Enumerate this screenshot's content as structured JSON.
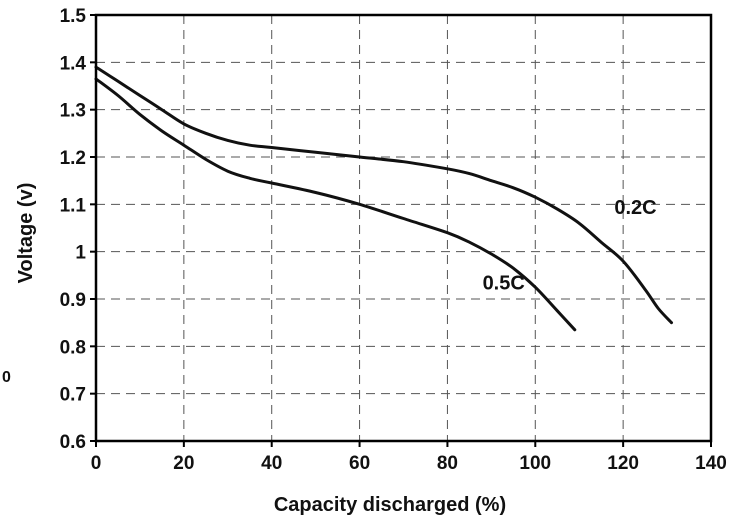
{
  "chart_data": {
    "type": "line",
    "title": "",
    "xlabel": "Capacity discharged (%)",
    "ylabel": "Voltage (v)",
    "xlim": [
      0,
      140
    ],
    "ylim": [
      0.6,
      1.5
    ],
    "xticks": [
      0,
      20,
      40,
      60,
      80,
      100,
      120,
      140
    ],
    "xtick_labels": [
      "0",
      "20",
      "40",
      "60",
      "80",
      "100",
      "120",
      "140"
    ],
    "yticks": [
      0.6,
      0.7,
      0.8,
      0.9,
      1.0,
      1.1,
      1.2,
      1.3,
      1.4,
      1.5
    ],
    "ytick_labels": [
      "0.6",
      "0.7",
      "0.8",
      "0.9",
      "1",
      "1.1",
      "1.2",
      "1.3",
      "1.4",
      "1.5"
    ],
    "grid": true,
    "legend": "none (series labeled directly on curves)",
    "series": [
      {
        "name": "0.2C",
        "x": [
          0,
          5,
          10,
          15,
          20,
          25,
          30,
          35,
          40,
          50,
          60,
          70,
          80,
          85,
          90,
          95,
          100,
          105,
          110,
          115,
          120,
          125,
          128,
          131
        ],
        "y": [
          1.39,
          1.36,
          1.33,
          1.3,
          1.27,
          1.25,
          1.235,
          1.225,
          1.22,
          1.21,
          1.2,
          1.19,
          1.175,
          1.165,
          1.15,
          1.135,
          1.115,
          1.09,
          1.06,
          1.02,
          0.98,
          0.92,
          0.88,
          0.85
        ]
      },
      {
        "name": "0.5C",
        "x": [
          0,
          5,
          10,
          15,
          20,
          25,
          30,
          35,
          40,
          50,
          60,
          70,
          80,
          85,
          90,
          95,
          100,
          105,
          109
        ],
        "y": [
          1.365,
          1.33,
          1.29,
          1.255,
          1.225,
          1.195,
          1.17,
          1.155,
          1.145,
          1.125,
          1.1,
          1.07,
          1.04,
          1.02,
          0.995,
          0.965,
          0.925,
          0.875,
          0.835
        ]
      }
    ],
    "annotations": [
      {
        "text": "0.2C",
        "x": 118,
        "y": 1.08
      },
      {
        "text": "0.5C",
        "x": 88,
        "y": 0.92
      }
    ],
    "colors": {
      "line": "#111111",
      "grid": "#555555",
      "axis": "#000000"
    },
    "stray_text": "0"
  }
}
